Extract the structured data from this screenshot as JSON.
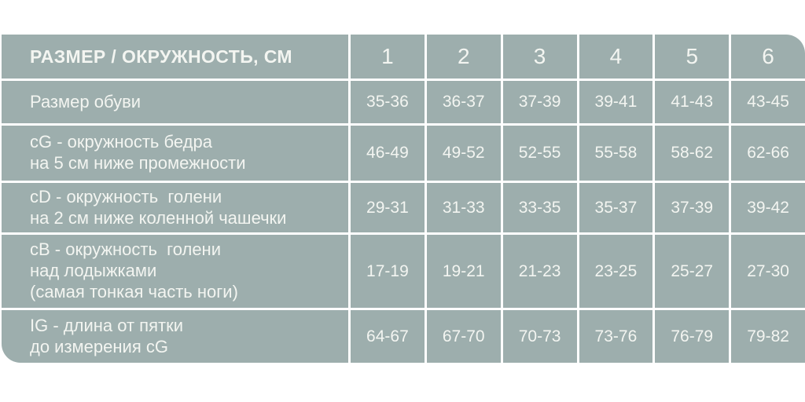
{
  "table": {
    "header": {
      "label": "РАЗМЕР / ОКРУЖНОСТЬ, СМ",
      "columns": [
        "1",
        "2",
        "3",
        "4",
        "5",
        "6"
      ]
    },
    "rows": [
      {
        "label_lines": [
          "Размер обуви"
        ],
        "values": [
          "35-36",
          "36-37",
          "37-39",
          "39-41",
          "41-43",
          "43-45"
        ]
      },
      {
        "label_lines": [
          "cG - окружность бедра",
          "на 5 см ниже промежности"
        ],
        "values": [
          "46-49",
          "49-52",
          "52-55",
          "55-58",
          "58-62",
          "62-66"
        ]
      },
      {
        "label_lines": [
          "cD - окружность  голени",
          "на 2 см ниже коленной чашечки"
        ],
        "values": [
          "29-31",
          "31-33",
          "33-35",
          "35-37",
          "37-39",
          "39-42"
        ]
      },
      {
        "label_lines": [
          "cB - окружность  голени",
          "над лодыжками",
          "(самая тонкая часть ноги)"
        ],
        "values": [
          "17-19",
          "19-21",
          "21-23",
          "23-25",
          "25-27",
          "27-30"
        ]
      },
      {
        "label_lines": [
          "IG - длина от пятки",
          "до измерения cG"
        ],
        "values": [
          "64-67",
          "67-70",
          "70-73",
          "73-76",
          "76-79",
          "79-82"
        ]
      }
    ],
    "colors": {
      "cell_background": "#9DAEAD",
      "text": "#F3F5F1",
      "page_background": "#FFFFFF"
    }
  },
  "chart_data": {
    "type": "table",
    "title": "РАЗМЕР / ОКРУЖНОСТЬ, СМ",
    "columns": [
      "РАЗМЕР / ОКРУЖНОСТЬ, СМ",
      "1",
      "2",
      "3",
      "4",
      "5",
      "6"
    ],
    "rows": [
      [
        "Размер обуви",
        "35-36",
        "36-37",
        "37-39",
        "39-41",
        "41-43",
        "43-45"
      ],
      [
        "cG - окружность бедра на 5 см ниже промежности",
        "46-49",
        "49-52",
        "52-55",
        "55-58",
        "58-62",
        "62-66"
      ],
      [
        "cD - окружность голени на 2 см ниже коленной чашечки",
        "29-31",
        "31-33",
        "33-35",
        "35-37",
        "37-39",
        "39-42"
      ],
      [
        "cB - окружность голени над лодыжками (самая тонкая часть ноги)",
        "17-19",
        "19-21",
        "21-23",
        "23-25",
        "25-27",
        "27-30"
      ],
      [
        "IG - длина от пятки до измерения cG",
        "64-67",
        "67-70",
        "70-73",
        "73-76",
        "76-79",
        "79-82"
      ]
    ]
  }
}
